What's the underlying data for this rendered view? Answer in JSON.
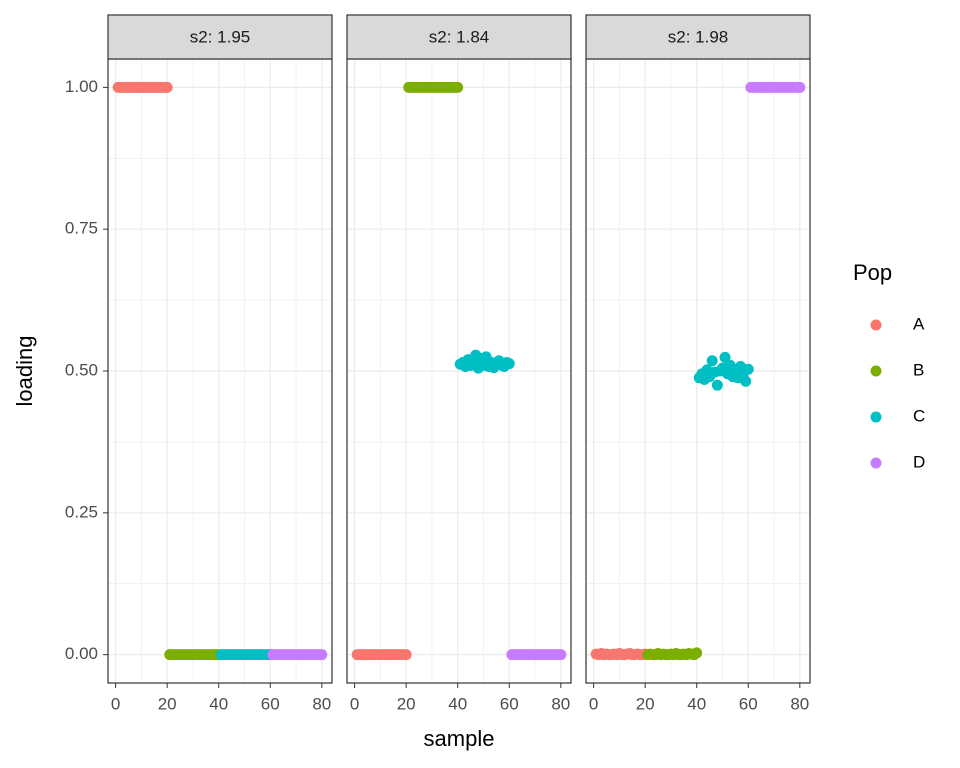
{
  "xlabel": "sample",
  "ylabel": "loading",
  "legend_title": "Pop",
  "chart_data": [
    {
      "type": "scatter",
      "title": "s2: 1.95",
      "xlim": [
        -2.95,
        83.95
      ],
      "xticks": [
        0,
        20,
        40,
        60,
        80
      ],
      "ylim": [
        -0.05,
        1.05
      ],
      "yticks": [
        {
          "value": 0,
          "label": "0.00"
        },
        {
          "value": 0.25,
          "label": "0.25"
        },
        {
          "value": 0.5,
          "label": "0.50"
        },
        {
          "value": 0.75,
          "label": "0.75"
        },
        {
          "value": 1,
          "label": "1.00"
        }
      ],
      "grid": true,
      "series": [
        {
          "name": "A",
          "color": "#F8766D",
          "x": [
            1,
            2,
            3,
            4,
            5,
            6,
            7,
            8,
            9,
            10,
            11,
            12,
            13,
            14,
            15,
            16,
            17,
            18,
            19,
            20
          ],
          "values": [
            1,
            1,
            1,
            1,
            1,
            1,
            1,
            1,
            1,
            1,
            1,
            1,
            1,
            1,
            1,
            1,
            1,
            1,
            1,
            1
          ]
        },
        {
          "name": "B",
          "color": "#7CAE00",
          "x": [
            21,
            22,
            23,
            24,
            25,
            26,
            27,
            28,
            29,
            30,
            31,
            32,
            33,
            34,
            35,
            36,
            37,
            38,
            39,
            40
          ],
          "values": [
            0,
            0,
            0,
            0,
            0,
            0,
            0,
            0,
            0,
            0,
            0,
            0,
            0,
            0,
            0,
            0,
            0,
            0,
            0,
            0
          ]
        },
        {
          "name": "C",
          "color": "#00BFC4",
          "x": [
            41,
            42,
            43,
            44,
            45,
            46,
            47,
            48,
            49,
            50,
            51,
            52,
            53,
            54,
            55,
            56,
            57,
            58,
            59,
            60
          ],
          "values": [
            0,
            0,
            0,
            0,
            0,
            0,
            0,
            0,
            0,
            0,
            0,
            0,
            0,
            0,
            0,
            0,
            0,
            0,
            0,
            0
          ]
        },
        {
          "name": "D",
          "color": "#C77CFF",
          "x": [
            61,
            62,
            63,
            64,
            65,
            66,
            67,
            68,
            69,
            70,
            71,
            72,
            73,
            74,
            75,
            76,
            77,
            78,
            79,
            80
          ],
          "values": [
            0,
            0,
            0,
            0,
            0,
            0,
            0,
            0,
            0,
            0,
            0,
            0,
            0,
            0,
            0,
            0,
            0,
            0,
            0,
            0
          ]
        }
      ]
    },
    {
      "type": "scatter",
      "title": "s2: 1.84",
      "xlim": [
        -2.95,
        83.95
      ],
      "xticks": [
        0,
        20,
        40,
        60,
        80
      ],
      "ylim": [
        -0.05,
        1.05
      ],
      "yticks": [
        {
          "value": 0,
          "label": "0.00"
        },
        {
          "value": 0.25,
          "label": "0.25"
        },
        {
          "value": 0.5,
          "label": "0.50"
        },
        {
          "value": 0.75,
          "label": "0.75"
        },
        {
          "value": 1,
          "label": "1.00"
        }
      ],
      "grid": true,
      "series": [
        {
          "name": "A",
          "color": "#F8766D",
          "x": [
            1,
            2,
            3,
            4,
            5,
            6,
            7,
            8,
            9,
            10,
            11,
            12,
            13,
            14,
            15,
            16,
            17,
            18,
            19,
            20
          ],
          "values": [
            0,
            0,
            0,
            0,
            0,
            0,
            0,
            0,
            0,
            0,
            0,
            0,
            0,
            0,
            0,
            0,
            0,
            0,
            0,
            0
          ]
        },
        {
          "name": "B",
          "color": "#7CAE00",
          "x": [
            21,
            22,
            23,
            24,
            25,
            26,
            27,
            28,
            29,
            30,
            31,
            32,
            33,
            34,
            35,
            36,
            37,
            38,
            39,
            40
          ],
          "values": [
            1,
            1,
            1,
            1,
            1,
            1,
            1,
            1,
            1,
            1,
            1,
            1,
            1,
            1,
            1,
            1,
            1,
            1,
            1,
            1
          ]
        },
        {
          "name": "C",
          "color": "#00BFC4",
          "x": [
            41,
            42,
            43,
            44,
            45,
            46,
            47,
            48,
            49,
            50,
            51,
            52,
            53,
            54,
            55,
            56,
            57,
            58,
            59,
            60
          ],
          "values": [
            0.512,
            0.515,
            0.508,
            0.52,
            0.51,
            0.518,
            0.528,
            0.505,
            0.522,
            0.51,
            0.525,
            0.508,
            0.515,
            0.506,
            0.51,
            0.518,
            0.512,
            0.508,
            0.515,
            0.513
          ]
        },
        {
          "name": "D",
          "color": "#C77CFF",
          "x": [
            61,
            62,
            63,
            64,
            65,
            66,
            67,
            68,
            69,
            70,
            71,
            72,
            73,
            74,
            75,
            76,
            77,
            78,
            79,
            80
          ],
          "values": [
            0,
            0,
            0,
            0,
            0,
            0,
            0,
            0,
            0,
            0,
            0,
            0,
            0,
            0,
            0,
            0,
            0,
            0,
            0,
            0
          ]
        }
      ]
    },
    {
      "type": "scatter",
      "title": "s2: 1.98",
      "xlim": [
        -2.95,
        83.95
      ],
      "xticks": [
        0,
        20,
        40,
        60,
        80
      ],
      "ylim": [
        -0.05,
        1.05
      ],
      "yticks": [
        {
          "value": 0,
          "label": "0.00"
        },
        {
          "value": 0.25,
          "label": "0.25"
        },
        {
          "value": 0.5,
          "label": "0.50"
        },
        {
          "value": 0.75,
          "label": "0.75"
        },
        {
          "value": 1,
          "label": "1.00"
        }
      ],
      "grid": true,
      "series": [
        {
          "name": "A",
          "color": "#F8766D",
          "x": [
            1,
            2,
            3,
            4,
            5,
            6,
            7,
            8,
            9,
            10,
            11,
            12,
            13,
            14,
            15,
            16,
            17,
            18,
            19,
            20
          ],
          "values": [
            0.001,
            0,
            0.002,
            0,
            0.001,
            0,
            0,
            0.001,
            0,
            0.002,
            0,
            0,
            0.001,
            0.002,
            0,
            0,
            0.001,
            0,
            0,
            0.001
          ]
        },
        {
          "name": "B",
          "color": "#7CAE00",
          "x": [
            21,
            22,
            23,
            24,
            25,
            26,
            27,
            28,
            29,
            30,
            31,
            32,
            33,
            34,
            35,
            36,
            37,
            38,
            39,
            40
          ],
          "values": [
            0,
            0.001,
            0,
            0,
            0.002,
            0,
            0.001,
            0,
            0,
            0.001,
            0,
            0.002,
            0,
            0,
            0.001,
            0,
            0.002,
            0.001,
            0,
            0.003
          ]
        },
        {
          "name": "C",
          "color": "#00BFC4",
          "x": [
            41,
            42,
            43,
            44,
            45,
            46,
            47,
            48,
            49,
            50,
            51,
            52,
            53,
            54,
            55,
            56,
            57,
            58,
            59,
            60
          ],
          "values": [
            0.488,
            0.495,
            0.485,
            0.502,
            0.49,
            0.518,
            0.498,
            0.475,
            0.5,
            0.505,
            0.524,
            0.495,
            0.51,
            0.49,
            0.5,
            0.488,
            0.508,
            0.495,
            0.482,
            0.503
          ]
        },
        {
          "name": "D",
          "color": "#C77CFF",
          "x": [
            61,
            62,
            63,
            64,
            65,
            66,
            67,
            68,
            69,
            70,
            71,
            72,
            73,
            74,
            75,
            76,
            77,
            78,
            79,
            80
          ],
          "values": [
            1,
            1,
            1,
            1,
            1,
            1,
            1,
            1,
            1,
            1,
            1,
            1,
            1,
            1,
            1,
            1,
            1,
            1,
            1,
            1
          ]
        }
      ]
    }
  ]
}
